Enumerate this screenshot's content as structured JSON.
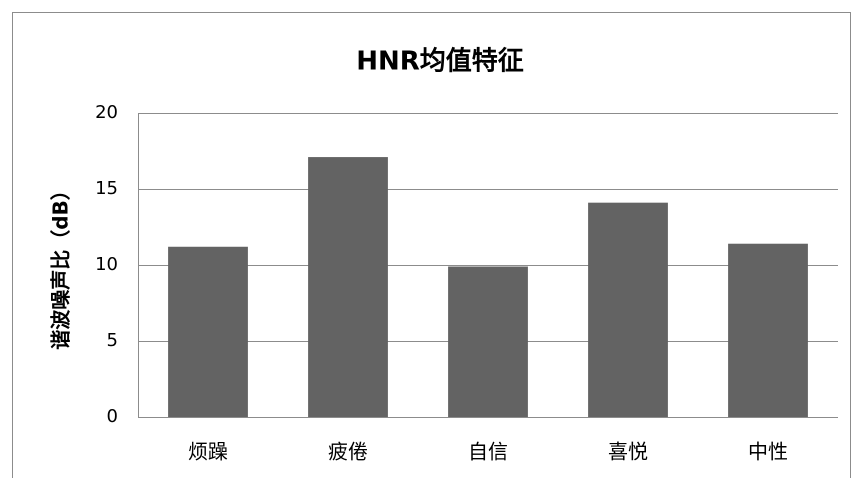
{
  "chart_data": {
    "type": "bar",
    "title": "HNR均值特征",
    "y_label": "谐波噪声比（dB）",
    "categories": [
      "烦躁",
      "疲倦",
      "自信",
      "喜悦",
      "中性"
    ],
    "values": [
      11.2,
      17.1,
      9.9,
      14.1,
      11.4
    ],
    "color": "#636363",
    "ylim": [
      0,
      20
    ],
    "yticks": [
      0,
      5,
      10,
      15,
      20
    ],
    "grid": true
  }
}
